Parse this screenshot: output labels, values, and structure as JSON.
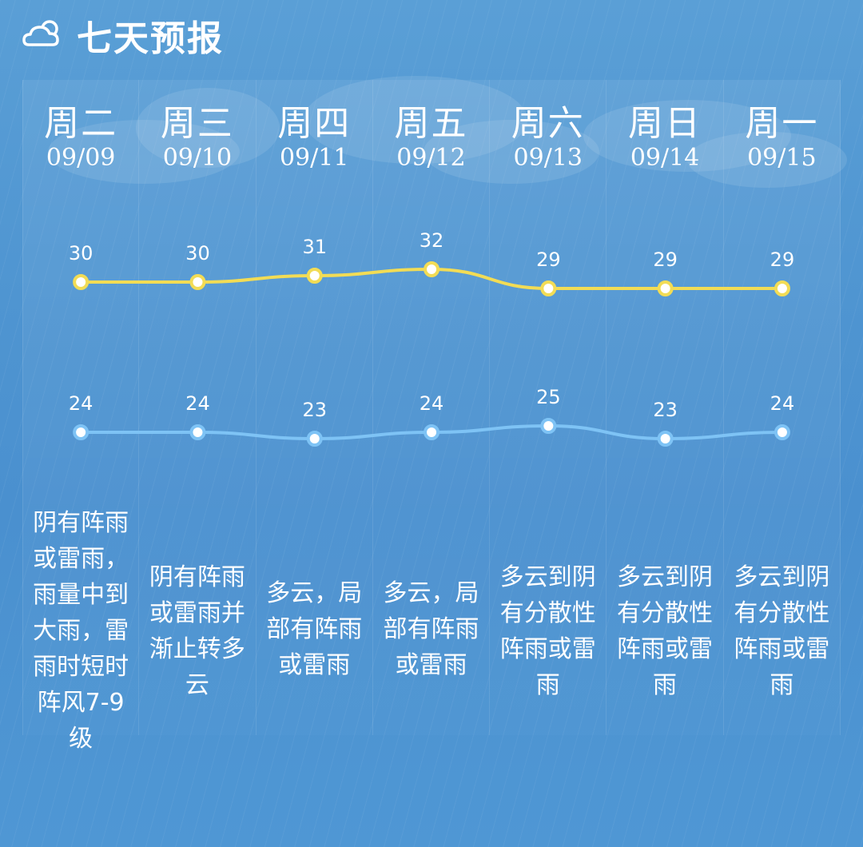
{
  "header": {
    "icon": "cloud-sun-icon",
    "title": "七天预报"
  },
  "days": [
    {
      "day": "周二",
      "date": "09/09",
      "desc": "阴有阵雨或雷雨，雨量中到大雨，雷雨时短时阵风7-9级"
    },
    {
      "day": "周三",
      "date": "09/10",
      "desc": "阴有阵雨或雷雨并渐止转多云"
    },
    {
      "day": "周四",
      "date": "09/11",
      "desc": "多云，局部有阵雨或雷雨"
    },
    {
      "day": "周五",
      "date": "09/12",
      "desc": "多云，局部有阵雨或雷雨"
    },
    {
      "day": "周六",
      "date": "09/13",
      "desc": "多云到阴有分散性阵雨或雷雨"
    },
    {
      "day": "周日",
      "date": "09/14",
      "desc": "多云到阴有分散性阵雨或雷雨"
    },
    {
      "day": "周一",
      "date": "09/15",
      "desc": "多云到阴有分散性阵雨或雷雨"
    }
  ],
  "chart_data": {
    "type": "line",
    "categories": [
      "09/09",
      "09/10",
      "09/11",
      "09/12",
      "09/13",
      "09/14",
      "09/15"
    ],
    "series": [
      {
        "values": [
          30,
          30,
          31,
          32,
          29,
          29,
          29
        ],
        "color": "#f2dc55"
      },
      {
        "values": [
          24,
          24,
          23,
          24,
          25,
          23,
          24
        ],
        "color": "#7ec3f5"
      }
    ]
  },
  "colors": {
    "background": "#4f95d1",
    "high_line": "#f2dc55",
    "low_line": "#7ec3f5"
  }
}
